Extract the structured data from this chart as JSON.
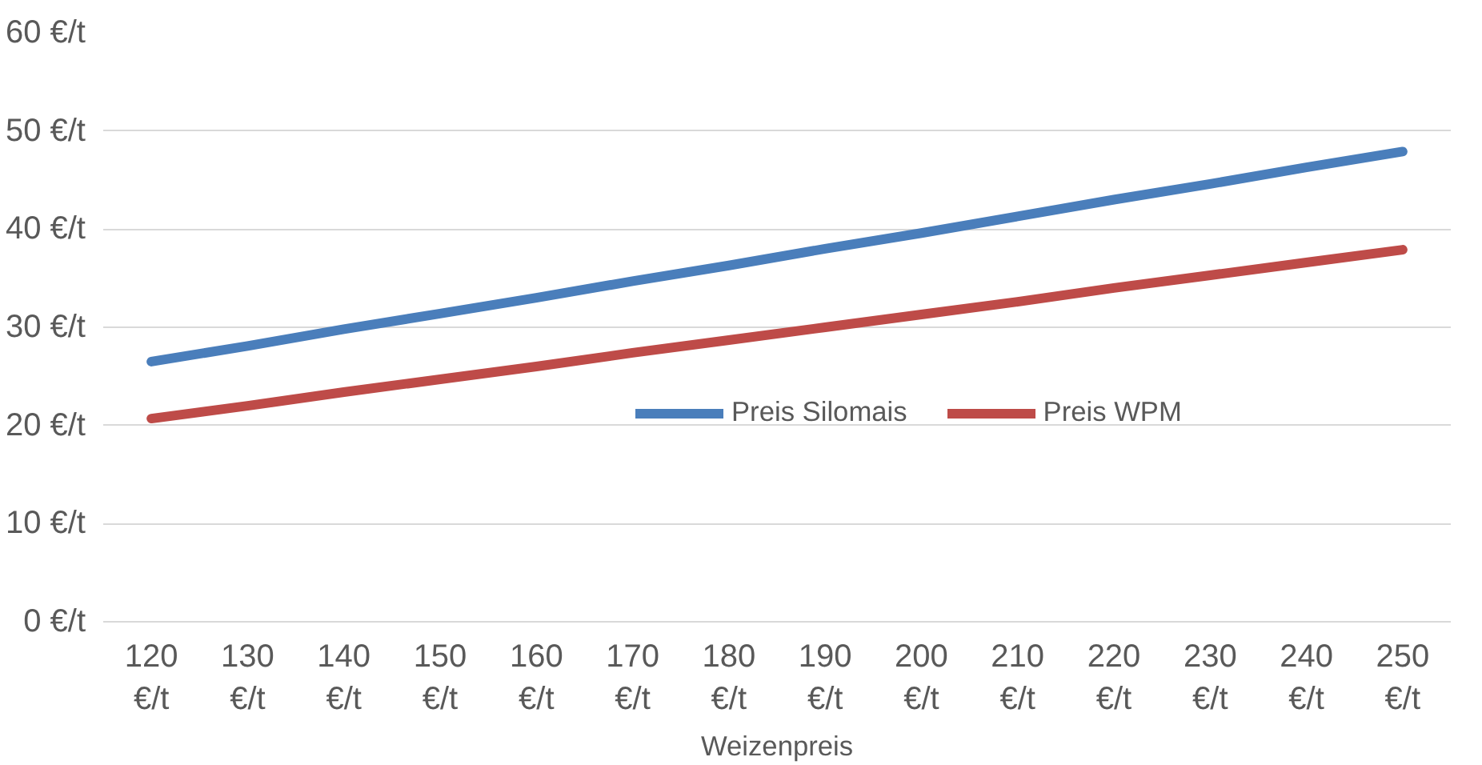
{
  "chart_data": {
    "type": "line",
    "xlabel": "Weizenpreis",
    "categories": [
      "120 €/t",
      "130 €/t",
      "140 €/t",
      "150 €/t",
      "160 €/t",
      "170 €/t",
      "180 €/t",
      "190 €/t",
      "200 €/t",
      "210 €/t",
      "220 €/t",
      "230 €/t",
      "240 €/t",
      "250 €/t"
    ],
    "series": [
      {
        "name": "Preis Silomais",
        "color": "#4a7ebb",
        "values": [
          26.5,
          28.1,
          29.8,
          31.4,
          33.0,
          34.7,
          36.3,
          38.0,
          39.6,
          41.3,
          43.0,
          44.6,
          46.3,
          47.9
        ]
      },
      {
        "name": "Preis WPM",
        "color": "#be4b48",
        "values": [
          20.7,
          22.0,
          23.4,
          24.7,
          26.0,
          27.4,
          28.7,
          30.0,
          31.3,
          32.6,
          34.0,
          35.3,
          36.6,
          37.9
        ]
      }
    ],
    "ylim": [
      0,
      60
    ],
    "yticks": [
      {
        "value": 0,
        "label": "0 €/t"
      },
      {
        "value": 10,
        "label": "10 €/t"
      },
      {
        "value": 20,
        "label": "20 €/t"
      },
      {
        "value": 30,
        "label": "30 €/t"
      },
      {
        "value": 40,
        "label": "40 €/t"
      },
      {
        "value": 50,
        "label": "50 €/t"
      },
      {
        "value": 60,
        "label": "60 €/t"
      }
    ],
    "grid": "y",
    "legend": "bottom",
    "marker": "none",
    "line_style": "solid"
  }
}
